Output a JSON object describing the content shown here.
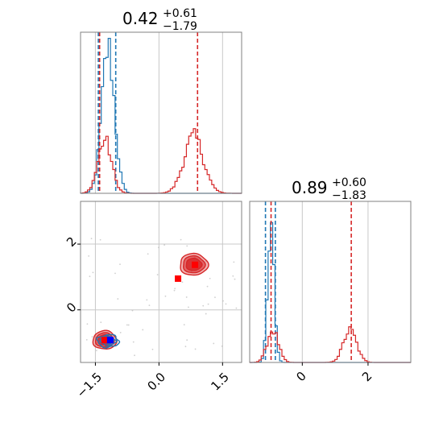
{
  "colors": {
    "blue": "#1f77b4",
    "red": "#d62728",
    "grid": "#c8c8c8",
    "frame": "#808080",
    "marker_red": "#ff0000",
    "marker_blue": "#0000ff"
  },
  "chart_data": [
    {
      "type": "histogram",
      "panel": "marginal-x",
      "title": {
        "value": "0.42",
        "plus": "+0.61",
        "minus": "−1.79"
      },
      "xlim": [
        -1.85,
        1.95
      ],
      "x_grid": [
        -1.5,
        0.0,
        1.5
      ],
      "series": [
        {
          "color": "blue",
          "center": -1.2,
          "sd": 0.15,
          "peak": 0.9,
          "weight": 1,
          "quantiles": [
            -1.43,
            -1.02
          ]
        },
        {
          "color": "red",
          "components": [
            {
              "center": -1.28,
              "sd": 0.16,
              "peak": 0.33
            },
            {
              "center": 0.82,
              "sd": 0.23,
              "peak": 0.35
            }
          ],
          "quantiles": [
            -1.4,
            0.91
          ]
        }
      ]
    },
    {
      "type": "histogram",
      "panel": "marginal-y",
      "title": {
        "value": "0.89",
        "plus": "+0.60",
        "minus": "−1.83"
      },
      "xlim": [
        -1.6,
        3.3
      ],
      "x_ticks": [
        0,
        2
      ],
      "tick_labels": [
        "0",
        "2"
      ],
      "series": [
        {
          "color": "blue",
          "center": -0.95,
          "sd": 0.1,
          "peak": 0.8,
          "quantiles": [
            -1.12,
            -0.82
          ]
        },
        {
          "color": "red",
          "components": [
            {
              "center": -0.9,
              "sd": 0.17,
              "peak": 0.2
            },
            {
              "center": 1.45,
              "sd": 0.2,
              "peak": 0.2
            }
          ],
          "quantiles": [
            -0.95,
            1.49
          ]
        }
      ]
    },
    {
      "type": "scatter-contour",
      "panel": "joint",
      "xlim": [
        -1.85,
        1.95
      ],
      "ylim": [
        -1.6,
        3.3
      ],
      "x_ticks": [
        -1.5,
        0.0,
        1.5
      ],
      "x_tick_labels": [
        "−1.5",
        "0.0",
        "1.5"
      ],
      "y_ticks": [
        0,
        2
      ],
      "y_tick_labels": [
        "0",
        "2"
      ],
      "clusters": [
        {
          "color": "red",
          "center": [
            -1.28,
            -0.92
          ],
          "rx": 0.28,
          "ry": 0.28
        },
        {
          "color": "red",
          "center": [
            0.82,
            1.38
          ],
          "rx": 0.33,
          "ry": 0.33
        },
        {
          "color": "blue",
          "center": [
            -1.2,
            -0.95
          ],
          "rx": 0.25,
          "ry": 0.12
        }
      ],
      "markers": [
        {
          "color": "marker_red",
          "x": -1.28,
          "y": -0.92
        },
        {
          "color": "marker_red",
          "x": 0.85,
          "y": 1.37
        },
        {
          "color": "marker_red",
          "x": 0.45,
          "y": 0.95
        },
        {
          "color": "marker_blue",
          "x": -1.15,
          "y": -0.92
        }
      ]
    }
  ]
}
